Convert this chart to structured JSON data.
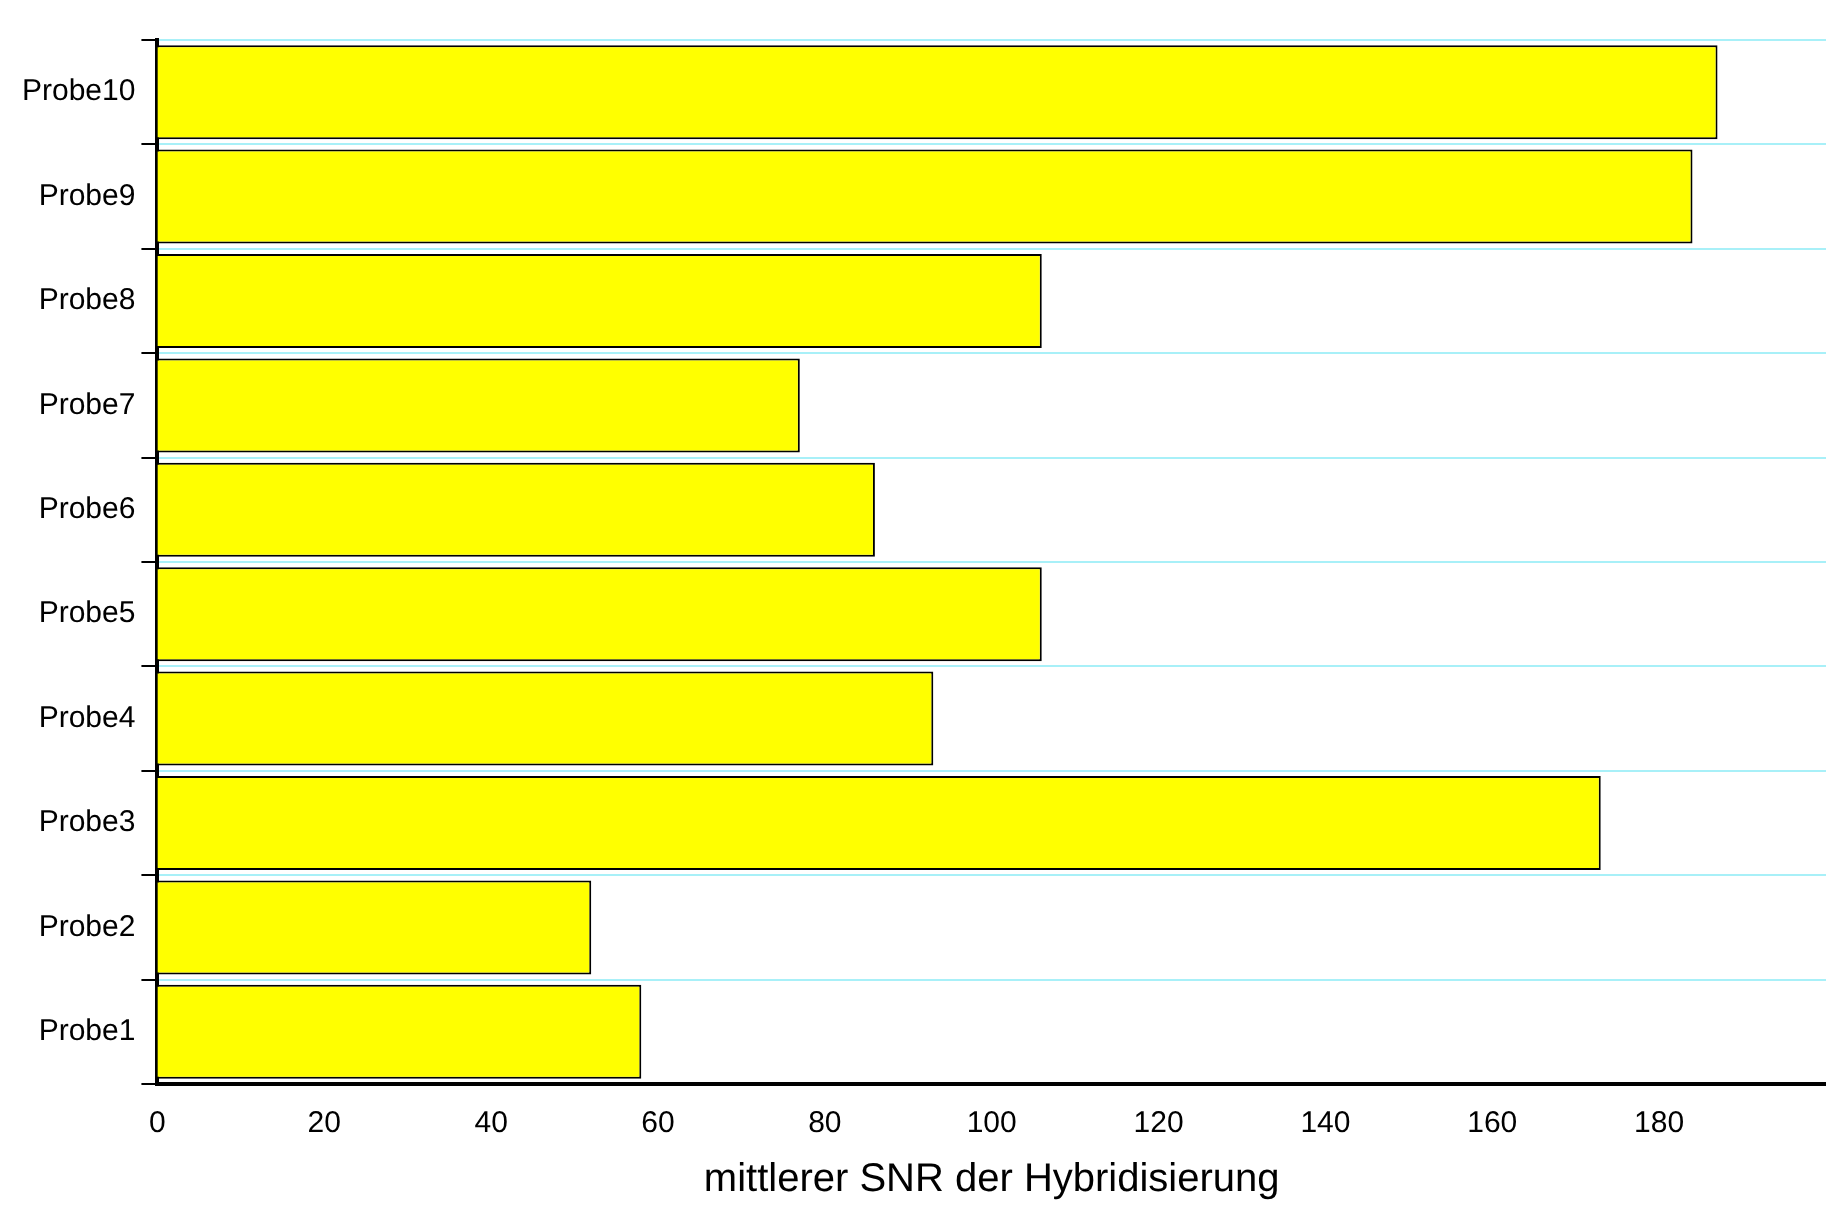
{
  "chart_data": {
    "type": "bar",
    "orientation": "horizontal",
    "xlabel": "mittlerer SNR der Hybridisierung",
    "categories": [
      "Probe10",
      "Probe9",
      "Probe8",
      "Probe7",
      "Probe6",
      "Probe5",
      "Probe4",
      "Probe3",
      "Probe2",
      "Probe1"
    ],
    "values": [
      187,
      184,
      106,
      77,
      86,
      106,
      93,
      173,
      52,
      58
    ],
    "color": "#ffff00",
    "xlim": [
      0,
      200
    ],
    "xticks": [
      0,
      20,
      40,
      60,
      80,
      100,
      120,
      140,
      160,
      180
    ],
    "grid": "y",
    "legend": false
  }
}
